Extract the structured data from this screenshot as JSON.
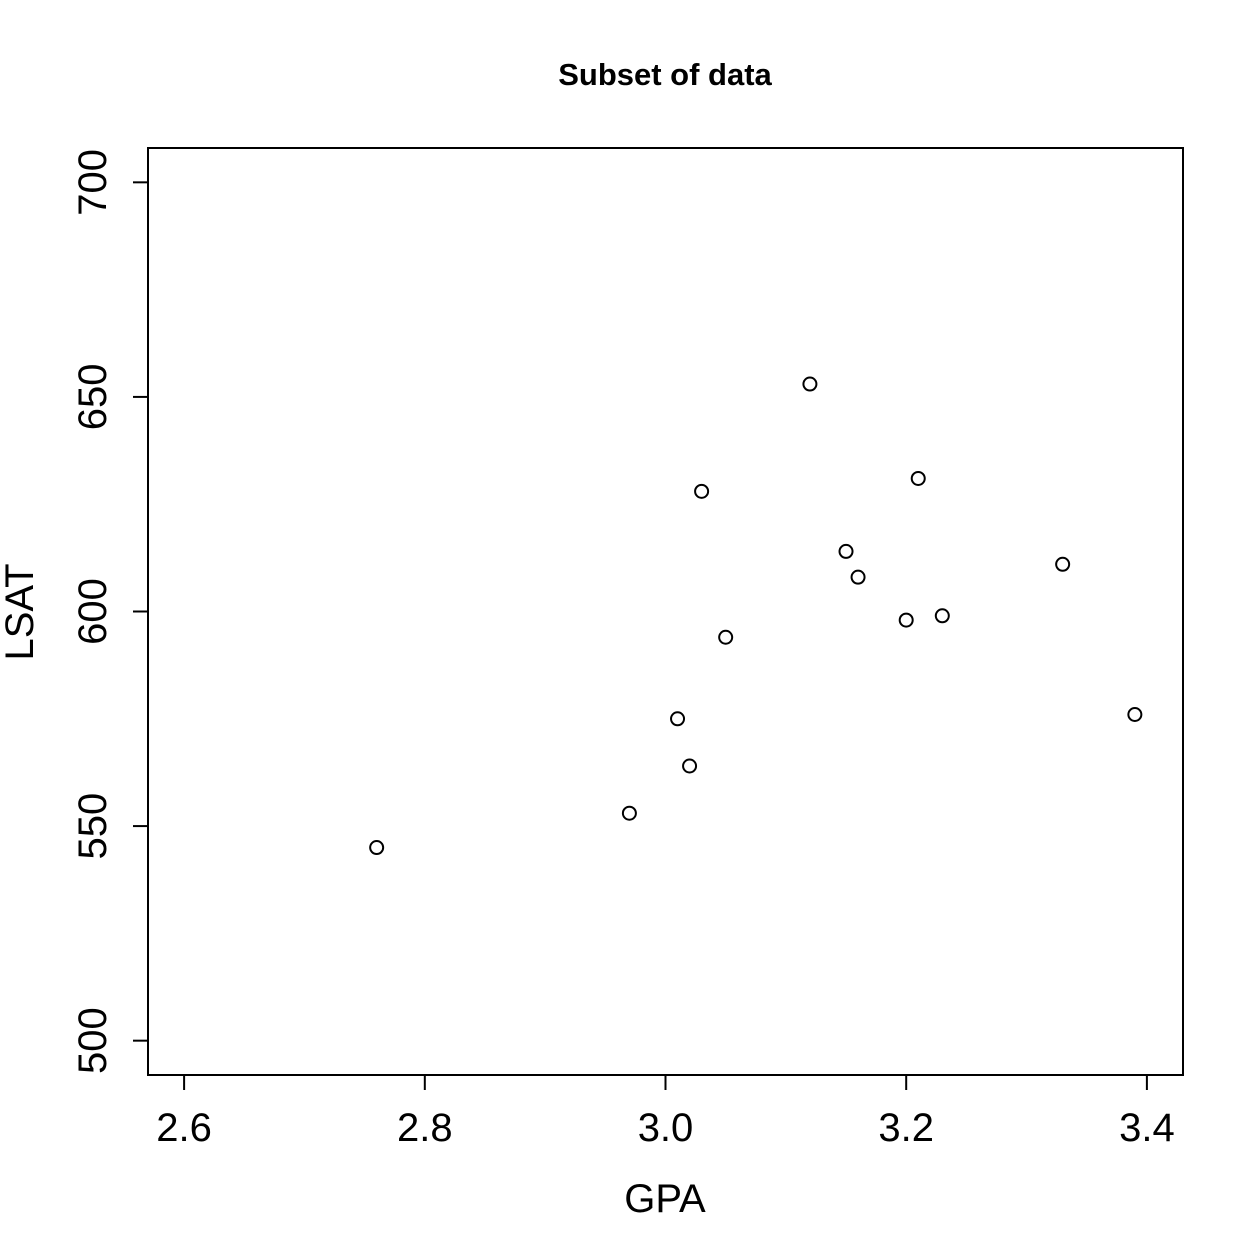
{
  "chart_data": {
    "type": "scatter",
    "title": "Subset of data",
    "xlabel": "GPA",
    "ylabel": "LSAT",
    "xlim": [
      2.57,
      3.43
    ],
    "ylim": [
      492,
      708
    ],
    "xticks": [
      2.6,
      2.8,
      3.0,
      3.2,
      3.4
    ],
    "xtick_labels": [
      "2.6",
      "2.8",
      "3.0",
      "3.2",
      "3.4"
    ],
    "yticks": [
      500,
      550,
      600,
      650,
      700
    ],
    "ytick_labels": [
      "500",
      "550",
      "600",
      "650",
      "700"
    ],
    "grid": false,
    "legend": "none",
    "marker": "open-circle",
    "points": [
      {
        "x": 2.76,
        "y": 545
      },
      {
        "x": 2.97,
        "y": 553
      },
      {
        "x": 3.01,
        "y": 575
      },
      {
        "x": 3.02,
        "y": 564
      },
      {
        "x": 3.03,
        "y": 628
      },
      {
        "x": 3.05,
        "y": 594
      },
      {
        "x": 3.12,
        "y": 653
      },
      {
        "x": 3.15,
        "y": 614
      },
      {
        "x": 3.16,
        "y": 608
      },
      {
        "x": 3.2,
        "y": 598
      },
      {
        "x": 3.21,
        "y": 631
      },
      {
        "x": 3.23,
        "y": 599
      },
      {
        "x": 3.33,
        "y": 611
      },
      {
        "x": 3.39,
        "y": 576
      }
    ]
  }
}
